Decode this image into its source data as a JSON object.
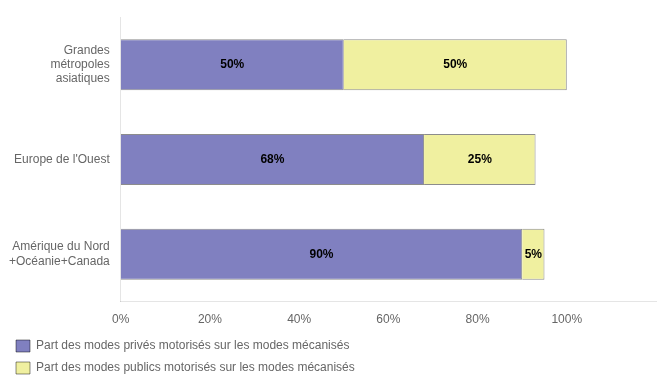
{
  "chart_data": {
    "type": "bar",
    "orientation": "horizontal",
    "stacked": true,
    "categories": [
      "Grandes\nmétropoles\nasiatiques",
      "Europe de l'Ouest",
      "Amérique du Nord\n+Océanie+Canada"
    ],
    "series": [
      {
        "name": "Part des modes privés motorisés sur les modes mécanisés",
        "color": "#8080c0",
        "values": [
          50,
          68,
          90
        ],
        "value_labels": [
          "50%",
          "68%",
          "90%"
        ]
      },
      {
        "name": "Part des modes publics motorisés sur les modes mécanisés",
        "color": "#f0f0a0",
        "values": [
          50,
          25,
          5
        ],
        "value_labels": [
          "50%",
          "25%",
          "5%"
        ]
      }
    ],
    "xlim": [
      0,
      120
    ],
    "xticks": [
      {
        "value": 0,
        "label": "0%"
      },
      {
        "value": 20,
        "label": "20%"
      },
      {
        "value": 40,
        "label": "40%"
      },
      {
        "value": 60,
        "label": "60%"
      },
      {
        "value": 80,
        "label": "80%"
      },
      {
        "value": 100,
        "label": "100%"
      }
    ],
    "grid": false,
    "legend": "bottom",
    "data_labels": true
  }
}
